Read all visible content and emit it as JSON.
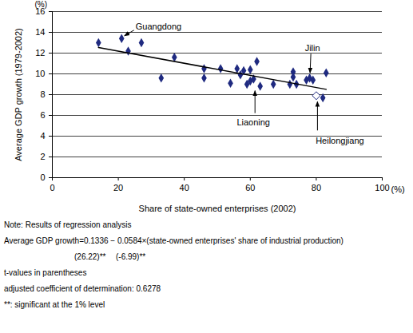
{
  "chart_data": {
    "type": "scatter",
    "xlabel": "Share of state-owned enterprises (2002)",
    "ylabel": "Average GDP growth (1979-2002)",
    "x_unit": "(%)",
    "y_unit": "(%)",
    "xlim": [
      0,
      100
    ],
    "xticks": [
      0,
      20,
      40,
      60,
      80,
      100
    ],
    "ylim": [
      0,
      16
    ],
    "yticks": [
      0,
      2,
      4,
      6,
      8,
      10,
      12,
      14,
      16
    ],
    "grid": true,
    "series": [
      {
        "type": "scatter",
        "marker": "diamond",
        "color": "#1f2a80",
        "x": [
          14,
          21,
          23,
          27,
          33,
          37,
          46,
          46,
          51,
          54,
          56,
          57,
          58,
          59,
          60,
          60,
          61,
          62,
          63,
          67,
          72,
          73,
          73,
          74,
          77,
          78,
          79,
          82,
          83
        ],
        "values": [
          13.0,
          13.4,
          12.2,
          13.0,
          9.6,
          11.6,
          10.5,
          9.6,
          10.5,
          9.1,
          10.5,
          9.9,
          10.3,
          9.0,
          9.3,
          10.4,
          9.5,
          11.2,
          8.8,
          9.0,
          9.0,
          9.7,
          10.2,
          9.0,
          9.4,
          9.6,
          9.4,
          7.7,
          10.1
        ]
      },
      {
        "type": "scatter",
        "marker": "open_diamond",
        "color": "#1f2a80",
        "x": [
          80
        ],
        "values": [
          7.9
        ]
      },
      {
        "type": "line",
        "color": "#000000",
        "x": [
          14,
          83
        ],
        "values": [
          12.54,
          8.51
        ]
      }
    ],
    "annotations": [
      {
        "text": "Guangdong",
        "x": 21,
        "y": 13.4
      },
      {
        "text": "Jilin",
        "x": 78,
        "y": 9.6
      },
      {
        "text": "Liaoning",
        "x": 63,
        "y": 8.8
      },
      {
        "text": "Heilongjiang",
        "x": 80,
        "y": 7.9
      }
    ],
    "note": {
      "heading": "Note: Results of regression analysis",
      "equation": "Average GDP growth=0.1336 − 0.0584×(state-owned enterprises' share of industrial production)",
      "t_values": [
        "(26.22)**",
        "(-6.99)**"
      ],
      "lines": [
        "t-values in parentheses",
        "adjusted coefficient of determination: 0.6278",
        "**: significant at the 1% level"
      ]
    }
  }
}
